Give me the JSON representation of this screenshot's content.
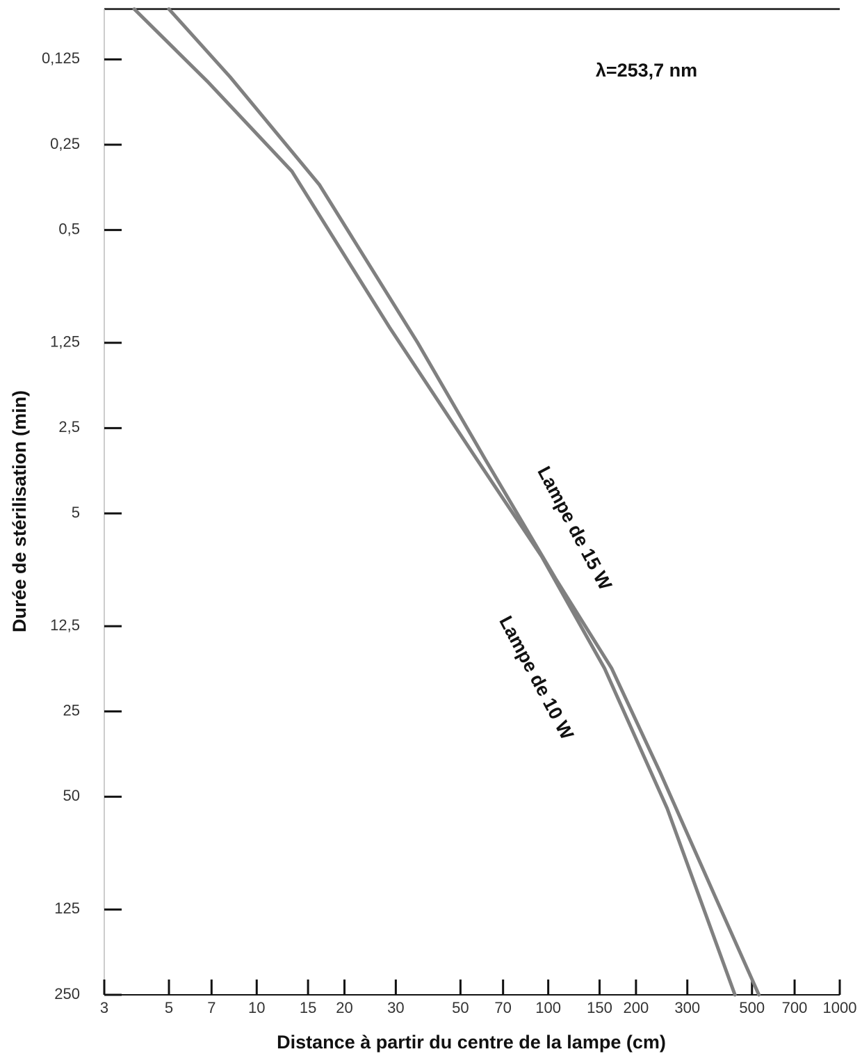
{
  "chart_data": {
    "type": "line",
    "xlabel": "Distance à partir du centre de la lampe (cm)",
    "ylabel": "Durée de stérilisation (min)",
    "annotation": "λ=253,7 nm",
    "xlog": true,
    "ylog": true,
    "xlim": [
      3,
      1000
    ],
    "ylim": [
      250,
      0.083
    ],
    "xticks": [
      3,
      5,
      7,
      10,
      15,
      20,
      30,
      50,
      70,
      100,
      150,
      200,
      300,
      500,
      700,
      1000
    ],
    "yticks": [
      {
        "value": 0.125,
        "label": "0,125"
      },
      {
        "value": 0.25,
        "label": "0,25"
      },
      {
        "value": 0.5,
        "label": "0,5"
      },
      {
        "value": 1.25,
        "label": "1,25"
      },
      {
        "value": 2.5,
        "label": "2,5"
      },
      5,
      {
        "value": 12.5,
        "label": "12,5"
      },
      25,
      50,
      125,
      250
    ],
    "series": [
      {
        "name": "Lampe de 15 W",
        "color": "#808080",
        "x": [
          5.0,
          8.1,
          16.4,
          35.5,
          61,
          106,
          165,
          242,
          376,
          528
        ],
        "values": [
          0.083,
          0.144,
          0.346,
          1.24,
          3.24,
          8.5,
          17.6,
          41,
          114,
          250
        ]
      },
      {
        "name": "Lampe de 10 W",
        "color": "#808080",
        "x": [
          3.8,
          6.8,
          13.2,
          28.5,
          55,
          95,
          156,
          256,
          437
        ],
        "values": [
          0.083,
          0.15,
          0.31,
          1.1,
          3.06,
          7.1,
          17.6,
          55,
          250
        ]
      }
    ]
  }
}
